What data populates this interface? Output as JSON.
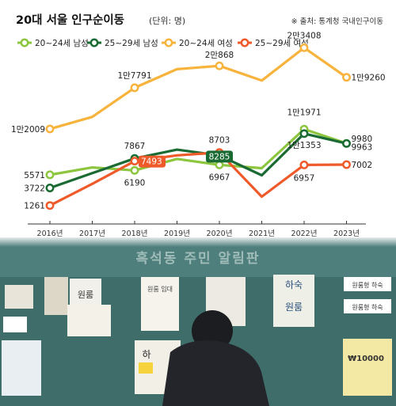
{
  "chart_data": {
    "type": "line",
    "title": "20대 서울 인구순이동",
    "unit": "(단위: 명)",
    "source": "※ 출처: 통계청 국내인구이동",
    "categories": [
      "2016년",
      "2017년",
      "2018년",
      "2019년",
      "2020년",
      "2021년",
      "2022년",
      "2023년"
    ],
    "ylim": [
      0,
      25000
    ],
    "grid": false,
    "legend_position": "top",
    "series": [
      {
        "name": "20~24세 남성",
        "color": "#8cc63f",
        "values": [
          5571,
          6600,
          6190,
          7800,
          6967,
          6500,
          11971,
          9980
        ],
        "labels": [
          "5571",
          null,
          "6190",
          null,
          "6967",
          null,
          "1만1971",
          "9980"
        ]
      },
      {
        "name": "25~29세 남성",
        "color": "#1a6b33",
        "values": [
          3722,
          5800,
          7867,
          9100,
          8285,
          5500,
          11353,
          9963
        ],
        "labels": [
          "3722",
          null,
          "7867",
          null,
          "8285",
          null,
          "1만1353",
          "9963"
        ]
      },
      {
        "name": "20~24세 여성",
        "color": "#f7b33c",
        "values": [
          12009,
          13700,
          17791,
          20400,
          20868,
          18800,
          23408,
          19260
        ],
        "labels": [
          "1만2009",
          null,
          "1만7791",
          null,
          "2만868",
          null,
          "2만3408",
          "1만9260"
        ]
      },
      {
        "name": "25~29세 여성",
        "color": "#ef5a2a",
        "values": [
          1261,
          4300,
          7493,
          8300,
          8703,
          2500,
          6957,
          7002
        ],
        "labels": [
          "1261",
          null,
          "7493",
          null,
          "8703",
          null,
          "6957",
          "7002"
        ]
      }
    ]
  },
  "photo": {
    "board_title": "흑석동 주민 알림판",
    "posters": [
      "원룸",
      "원룸 임대",
      "하숙",
      "원룸",
      "원룸형 하숙",
      "원룸형 하숙",
      "하",
      "₩10000"
    ]
  }
}
